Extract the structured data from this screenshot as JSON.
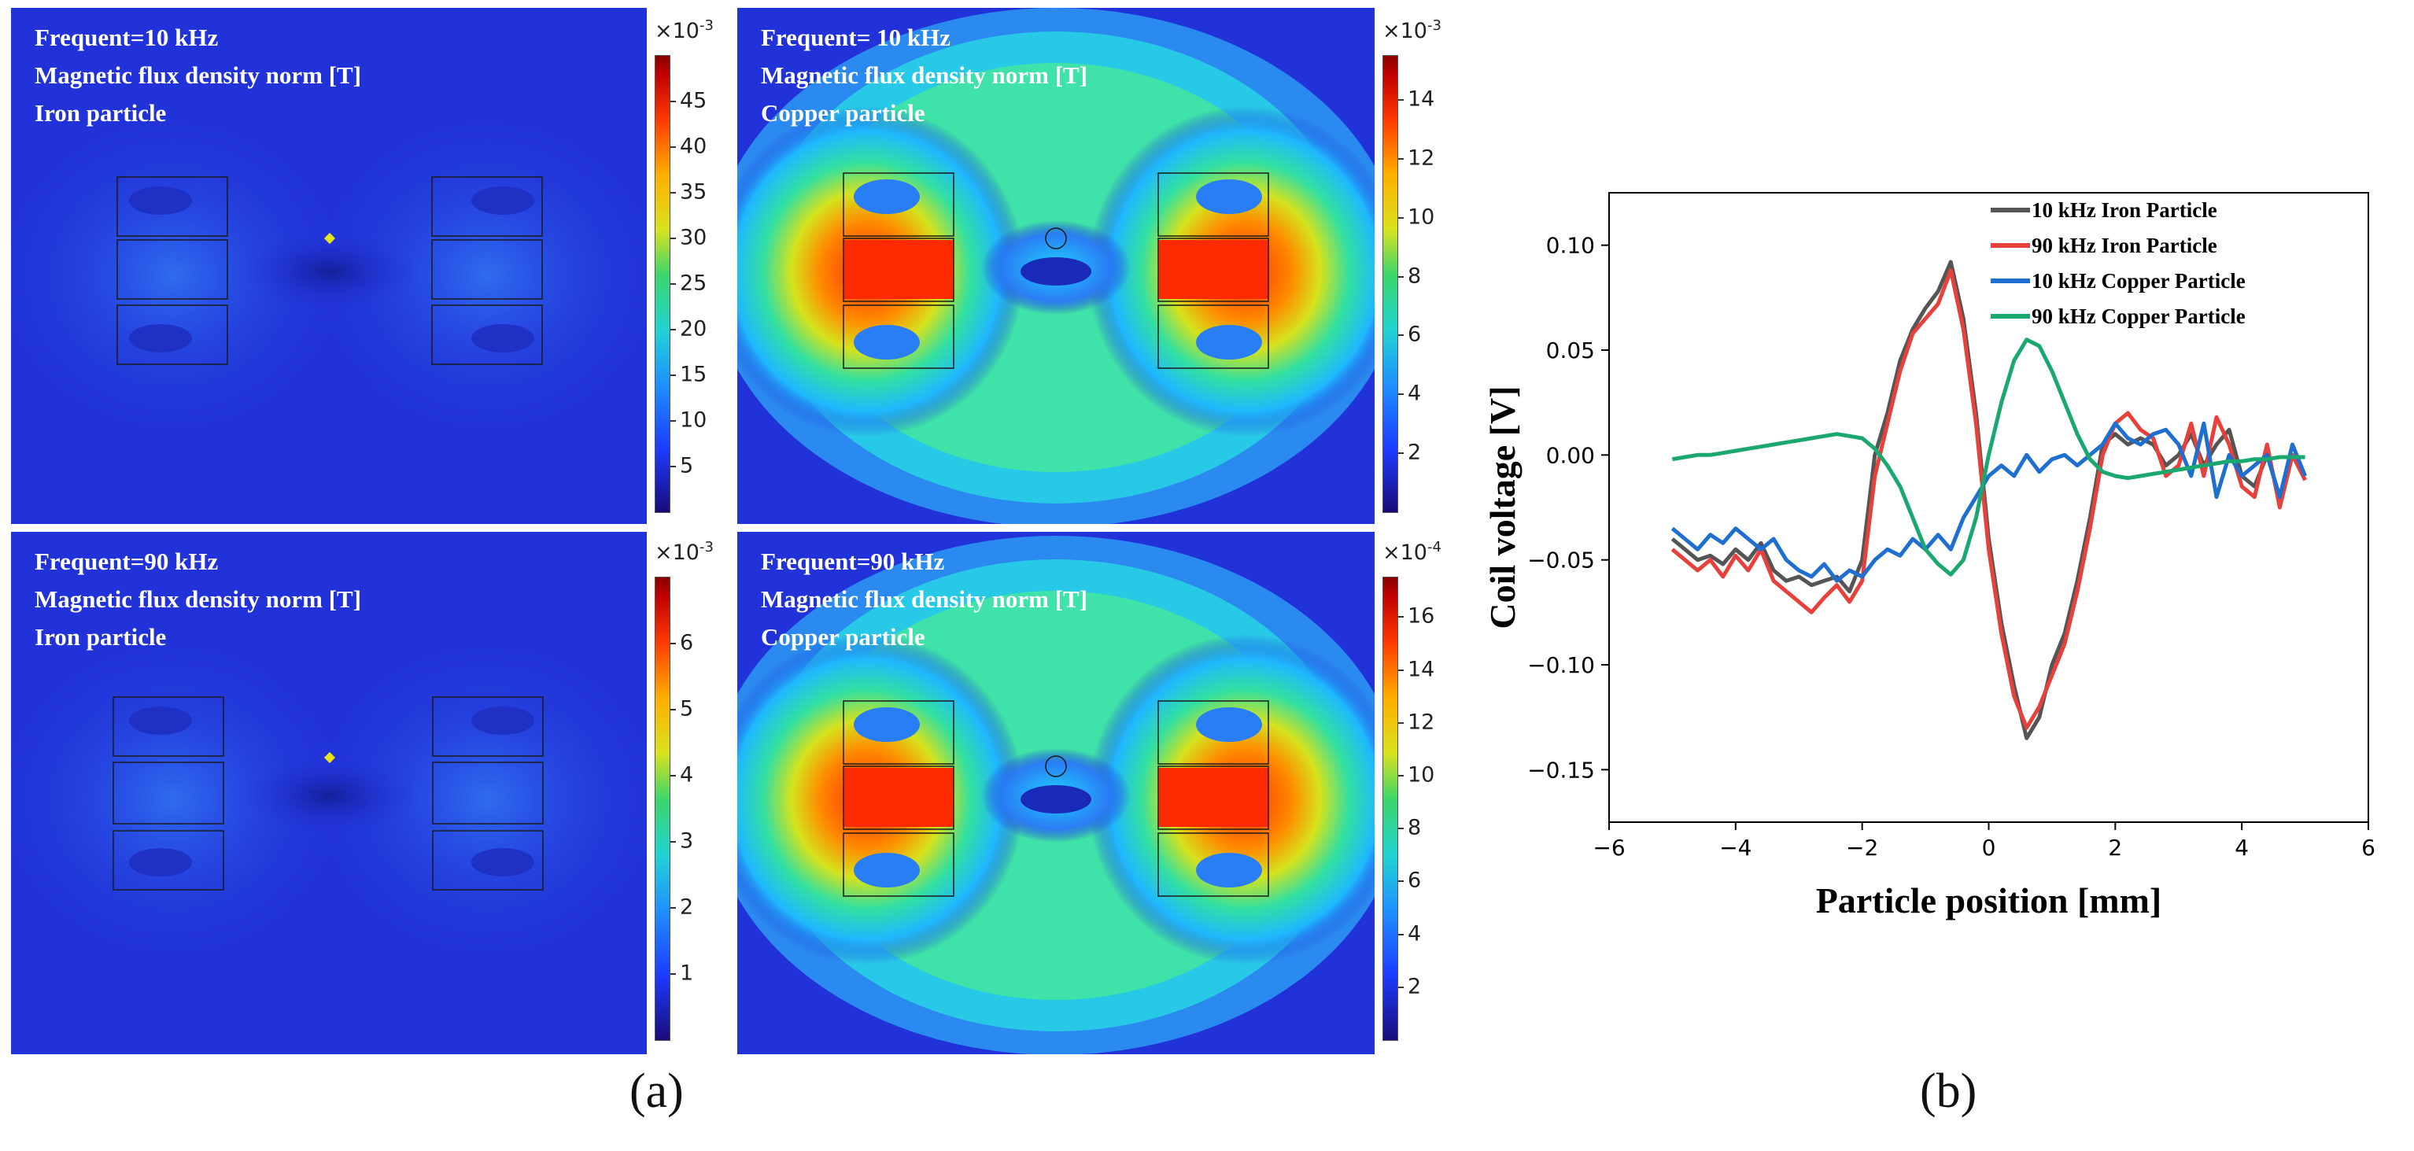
{
  "figure": {
    "label_a": "(a)",
    "label_b": "(b)"
  },
  "panels": [
    {
      "id": "p1",
      "line1": "Frequent=10 kHz",
      "line2": "Magnetic flux density norm [T]",
      "line3": "Iron particle",
      "scale_base": "×10",
      "scale_exp": "-3",
      "ticks": [
        "5",
        "10",
        "15",
        "20",
        "25",
        "30",
        "35",
        "40",
        "45"
      ],
      "tick_values": [
        5,
        10,
        15,
        20,
        25,
        30,
        35,
        40,
        45
      ],
      "range": [
        0,
        50
      ]
    },
    {
      "id": "p2",
      "line1": "Frequent= 10 kHz",
      "line2": " Magnetic flux density norm [T]",
      "line3": "Copper particle",
      "scale_base": "×10",
      "scale_exp": "-3",
      "ticks": [
        "2",
        "4",
        "6",
        "8",
        "10",
        "12",
        "14"
      ],
      "tick_values": [
        2,
        4,
        6,
        8,
        10,
        12,
        14
      ],
      "range": [
        0,
        15.5
      ]
    },
    {
      "id": "p3",
      "line1": "Frequent=90 kHz",
      "line2": "Magnetic flux density norm [T]",
      "line3": "Iron particle",
      "scale_base": "×10",
      "scale_exp": "-3",
      "ticks": [
        "1",
        "2",
        "3",
        "4",
        "5",
        "6"
      ],
      "tick_values": [
        1,
        2,
        3,
        4,
        5,
        6
      ],
      "range": [
        0,
        7
      ]
    },
    {
      "id": "p4",
      "line1": "Frequent=90 kHz",
      "line2": "Magnetic flux density norm [T]",
      "line3": "Copper particle",
      "scale_base": "×10",
      "scale_exp": "-4",
      "ticks": [
        "2",
        "4",
        "6",
        "8",
        "10",
        "12",
        "14",
        "16"
      ],
      "tick_values": [
        2,
        4,
        6,
        8,
        10,
        12,
        14,
        16
      ],
      "range": [
        0,
        17.5
      ]
    }
  ],
  "chart_data": {
    "type": "line",
    "title": "",
    "xlabel": "Particle position [mm]",
    "ylabel": "Coil voltage [V]",
    "xlim": [
      -6,
      6
    ],
    "ylim": [
      -0.175,
      0.125
    ],
    "xticks": [
      -6,
      -4,
      -2,
      0,
      2,
      4,
      6
    ],
    "xtick_labels": [
      "−6",
      "−4",
      "−2",
      "0",
      "2",
      "4",
      "6"
    ],
    "yticks": [
      -0.15,
      -0.1,
      -0.05,
      0.0,
      0.05,
      0.1
    ],
    "ytick_labels": [
      "−0.15",
      "−0.10",
      "−0.05",
      "0.00",
      "0.05",
      "0.10"
    ],
    "legend_position": "top-right",
    "series": [
      {
        "name": "10 kHz Iron Particle",
        "color": "#555555",
        "x": [
          -5.0,
          -4.8,
          -4.6,
          -4.4,
          -4.2,
          -4.0,
          -3.8,
          -3.6,
          -3.4,
          -3.2,
          -3.0,
          -2.8,
          -2.6,
          -2.4,
          -2.2,
          -2.0,
          -1.8,
          -1.6,
          -1.4,
          -1.2,
          -1.0,
          -0.8,
          -0.6,
          -0.4,
          -0.2,
          0.0,
          0.2,
          0.4,
          0.6,
          0.8,
          1.0,
          1.2,
          1.4,
          1.6,
          1.8,
          2.0,
          2.2,
          2.4,
          2.6,
          2.8,
          3.0,
          3.2,
          3.4,
          3.6,
          3.8,
          4.0,
          4.2,
          4.4,
          4.6,
          4.8,
          5.0
        ],
        "y": [
          -0.04,
          -0.045,
          -0.05,
          -0.048,
          -0.052,
          -0.045,
          -0.05,
          -0.042,
          -0.055,
          -0.06,
          -0.058,
          -0.062,
          -0.06,
          -0.058,
          -0.065,
          -0.05,
          0.0,
          0.02,
          0.045,
          0.06,
          0.07,
          0.078,
          0.092,
          0.065,
          0.02,
          -0.04,
          -0.08,
          -0.11,
          -0.135,
          -0.125,
          -0.1,
          -0.085,
          -0.06,
          -0.03,
          0.005,
          0.01,
          0.005,
          0.008,
          0.005,
          -0.005,
          0.0,
          0.01,
          -0.005,
          0.005,
          0.012,
          -0.01,
          -0.015,
          0.0,
          -0.02,
          0.0,
          -0.01
        ]
      },
      {
        "name": "90 kHz Iron Particle",
        "color": "#e8403a",
        "x": [
          -5.0,
          -4.8,
          -4.6,
          -4.4,
          -4.2,
          -4.0,
          -3.8,
          -3.6,
          -3.4,
          -3.2,
          -3.0,
          -2.8,
          -2.6,
          -2.4,
          -2.2,
          -2.0,
          -1.8,
          -1.6,
          -1.4,
          -1.2,
          -1.0,
          -0.8,
          -0.6,
          -0.4,
          -0.2,
          0.0,
          0.2,
          0.4,
          0.6,
          0.8,
          1.0,
          1.2,
          1.4,
          1.6,
          1.8,
          2.0,
          2.2,
          2.4,
          2.6,
          2.8,
          3.0,
          3.2,
          3.4,
          3.6,
          3.8,
          4.0,
          4.2,
          4.4,
          4.6,
          4.8,
          5.0
        ],
        "y": [
          -0.045,
          -0.05,
          -0.055,
          -0.05,
          -0.058,
          -0.048,
          -0.055,
          -0.045,
          -0.06,
          -0.065,
          -0.07,
          -0.075,
          -0.068,
          -0.062,
          -0.07,
          -0.06,
          -0.01,
          0.015,
          0.04,
          0.058,
          0.065,
          0.072,
          0.088,
          0.06,
          0.015,
          -0.045,
          -0.085,
          -0.115,
          -0.13,
          -0.12,
          -0.105,
          -0.09,
          -0.065,
          -0.035,
          0.0,
          0.015,
          0.02,
          0.012,
          0.008,
          -0.01,
          -0.005,
          0.015,
          -0.01,
          0.018,
          0.005,
          -0.015,
          -0.02,
          0.005,
          -0.025,
          0.0,
          -0.012
        ]
      },
      {
        "name": "10 kHz Copper Particle",
        "color": "#1f6fd1",
        "x": [
          -5.0,
          -4.8,
          -4.6,
          -4.4,
          -4.2,
          -4.0,
          -3.8,
          -3.6,
          -3.4,
          -3.2,
          -3.0,
          -2.8,
          -2.6,
          -2.4,
          -2.2,
          -2.0,
          -1.8,
          -1.6,
          -1.4,
          -1.2,
          -1.0,
          -0.8,
          -0.6,
          -0.4,
          -0.2,
          0.0,
          0.2,
          0.4,
          0.6,
          0.8,
          1.0,
          1.2,
          1.4,
          1.6,
          1.8,
          2.0,
          2.2,
          2.4,
          2.6,
          2.8,
          3.0,
          3.2,
          3.4,
          3.6,
          3.8,
          4.0,
          4.2,
          4.4,
          4.6,
          4.8,
          5.0
        ],
        "y": [
          -0.035,
          -0.04,
          -0.045,
          -0.038,
          -0.042,
          -0.035,
          -0.04,
          -0.045,
          -0.04,
          -0.05,
          -0.055,
          -0.058,
          -0.052,
          -0.06,
          -0.055,
          -0.058,
          -0.05,
          -0.045,
          -0.048,
          -0.04,
          -0.045,
          -0.038,
          -0.045,
          -0.03,
          -0.02,
          -0.01,
          -0.005,
          -0.01,
          0.0,
          -0.008,
          -0.002,
          0.0,
          -0.005,
          0.0,
          0.005,
          0.015,
          0.008,
          0.005,
          0.01,
          0.012,
          0.005,
          -0.01,
          0.015,
          -0.02,
          0.0,
          -0.01,
          -0.005,
          0.0,
          -0.02,
          0.005,
          -0.01
        ]
      },
      {
        "name": "90 kHz Copper Particle",
        "color": "#1aa86f",
        "x": [
          -5.0,
          -4.8,
          -4.6,
          -4.4,
          -4.2,
          -4.0,
          -3.8,
          -3.6,
          -3.4,
          -3.2,
          -3.0,
          -2.8,
          -2.6,
          -2.4,
          -2.2,
          -2.0,
          -1.8,
          -1.6,
          -1.4,
          -1.2,
          -1.0,
          -0.8,
          -0.6,
          -0.4,
          -0.2,
          0.0,
          0.2,
          0.4,
          0.6,
          0.8,
          1.0,
          1.2,
          1.4,
          1.6,
          1.8,
          2.0,
          2.2,
          2.4,
          2.6,
          2.8,
          3.0,
          3.2,
          3.4,
          3.6,
          3.8,
          4.0,
          4.2,
          4.4,
          4.6,
          4.8,
          5.0
        ],
        "y": [
          -0.002,
          -0.001,
          0.0,
          0.0,
          0.001,
          0.002,
          0.003,
          0.004,
          0.005,
          0.006,
          0.007,
          0.008,
          0.009,
          0.01,
          0.009,
          0.008,
          0.003,
          -0.005,
          -0.015,
          -0.03,
          -0.045,
          -0.052,
          -0.057,
          -0.05,
          -0.03,
          0.0,
          0.025,
          0.045,
          0.055,
          0.052,
          0.04,
          0.025,
          0.01,
          -0.002,
          -0.008,
          -0.01,
          -0.011,
          -0.01,
          -0.009,
          -0.008,
          -0.007,
          -0.006,
          -0.005,
          -0.004,
          -0.003,
          -0.003,
          -0.002,
          -0.002,
          -0.001,
          -0.001,
          -0.001
        ]
      }
    ]
  }
}
